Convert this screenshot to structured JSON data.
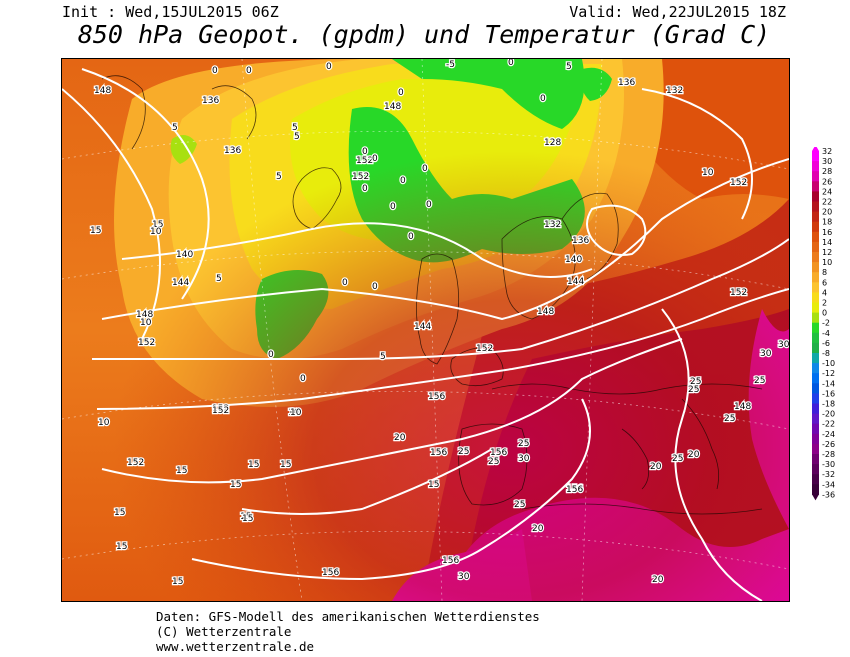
{
  "header": {
    "init": "Init : Wed,15JUL2015 06Z",
    "valid": "Valid: Wed,22JUL2015 18Z",
    "title": "850 hPa Geopot. (gpdm) und Temperatur (Grad C)"
  },
  "credits": {
    "line1": "Daten: GFS-Modell des amerikanischen Wetterdienstes",
    "line2": "(C) Wetterzentrale",
    "line3": "www.wetterzentrale.de"
  },
  "colorscale": {
    "labels": [
      "32",
      "30",
      "28",
      "26",
      "24",
      "22",
      "20",
      "18",
      "16",
      "14",
      "12",
      "10",
      "8",
      "6",
      "4",
      "2",
      "0",
      "-2",
      "-4",
      "-6",
      "-8",
      "-10",
      "-12",
      "-14",
      "-16",
      "-18",
      "-20",
      "-22",
      "-24",
      "-26",
      "-28",
      "-30",
      "-32",
      "-34",
      "-36"
    ],
    "colors": [
      "#ff00ff",
      "#f000d8",
      "#e000b0",
      "#c80070",
      "#a8002c",
      "#b4141e",
      "#c22614",
      "#d03a0c",
      "#de520c",
      "#e46614",
      "#ec7c1c",
      "#f29422",
      "#f8ac2a",
      "#fcc430",
      "#f8dc1c",
      "#e8ec0c",
      "#a8e010",
      "#28d828",
      "#20c040",
      "#20b048",
      "#10a8a8",
      "#1088e8",
      "#0070f0",
      "#0058e0",
      "#2040e8",
      "#4020d8",
      "#6018c8",
      "#7008b0",
      "#800098",
      "#8c0088",
      "#700070",
      "#5c005c",
      "#480048",
      "#380038"
    ]
  },
  "map": {
    "geopotential_labels": [
      "148",
      "136",
      "136",
      "148",
      "152",
      "152",
      "140",
      "144",
      "148",
      "152",
      "144",
      "152",
      "156",
      "152",
      "156",
      "156",
      "156",
      "156",
      "156",
      "136",
      "132",
      "128",
      "132",
      "136",
      "140",
      "144",
      "148",
      "152",
      "152",
      "156",
      "148",
      "152",
      "152"
    ],
    "temperature_labels": [
      "0",
      "0",
      "5",
      "5",
      "5",
      "0",
      "0",
      "0",
      "0",
      "0",
      "0",
      "0",
      "0",
      "-5",
      "5",
      "0",
      "0",
      "0",
      "0",
      "0",
      "0",
      "10",
      "10",
      "15",
      "15",
      "10",
      "5",
      "0",
      "0",
      "5",
      "5",
      "10",
      "10",
      "10",
      "15",
      "15",
      "15",
      "15",
      "15",
      "15",
      "15",
      "15",
      "15",
      "15",
      "20",
      "25",
      "25",
      "25",
      "30",
      "30",
      "25",
      "25",
      "20",
      "20",
      "20",
      "25",
      "25",
      "25",
      "30",
      "30",
      "25",
      "20",
      "25"
    ]
  }
}
